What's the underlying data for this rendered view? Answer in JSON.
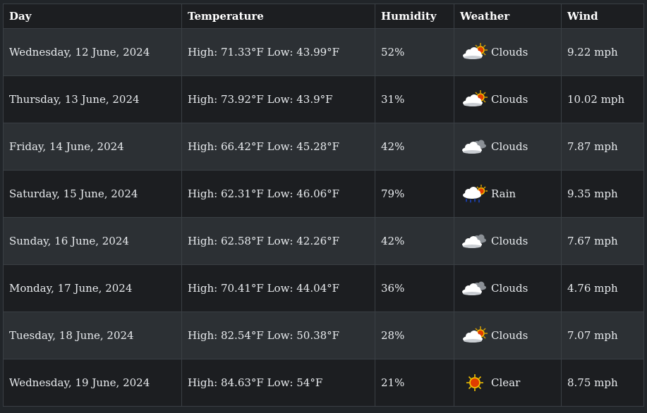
{
  "table": {
    "headers": {
      "day": "Day",
      "temperature": "Temperature",
      "humidity": "Humidity",
      "weather": "Weather",
      "wind": "Wind"
    },
    "rows": [
      {
        "day": "Wednesday, 12 June, 2024",
        "temperature": "High: 71.33°F Low: 43.99°F",
        "humidity": "52%",
        "weather": "Clouds",
        "icon": "sun-cloud-icon",
        "wind": "9.22 mph"
      },
      {
        "day": "Thursday, 13 June, 2024",
        "temperature": "High: 73.92°F Low: 43.9°F",
        "humidity": "31%",
        "weather": "Clouds",
        "icon": "sun-cloud-icon",
        "wind": "10.02 mph"
      },
      {
        "day": "Friday, 14 June, 2024",
        "temperature": "High: 66.42°F Low: 45.28°F",
        "humidity": "42%",
        "weather": "Clouds",
        "icon": "broken-clouds-icon",
        "wind": "7.87 mph"
      },
      {
        "day": "Saturday, 15 June, 2024",
        "temperature": "High: 62.31°F Low: 46.06°F",
        "humidity": "79%",
        "weather": "Rain",
        "icon": "rain-icon",
        "wind": "9.35 mph"
      },
      {
        "day": "Sunday, 16 June, 2024",
        "temperature": "High: 62.58°F Low: 42.26°F",
        "humidity": "42%",
        "weather": "Clouds",
        "icon": "broken-clouds-icon",
        "wind": "7.67 mph"
      },
      {
        "day": "Monday, 17 June, 2024",
        "temperature": "High: 70.41°F Low: 44.04°F",
        "humidity": "36%",
        "weather": "Clouds",
        "icon": "broken-clouds-icon",
        "wind": "4.76 mph"
      },
      {
        "day": "Tuesday, 18 June, 2024",
        "temperature": "High: 82.54°F Low: 50.38°F",
        "humidity": "28%",
        "weather": "Clouds",
        "icon": "sun-cloud-icon",
        "wind": "7.07 mph"
      },
      {
        "day": "Wednesday, 19 June, 2024",
        "temperature": "High: 84.63°F Low: 54°F",
        "humidity": "21%",
        "weather": "Clear",
        "icon": "sun-icon",
        "wind": "8.75 mph"
      }
    ]
  }
}
